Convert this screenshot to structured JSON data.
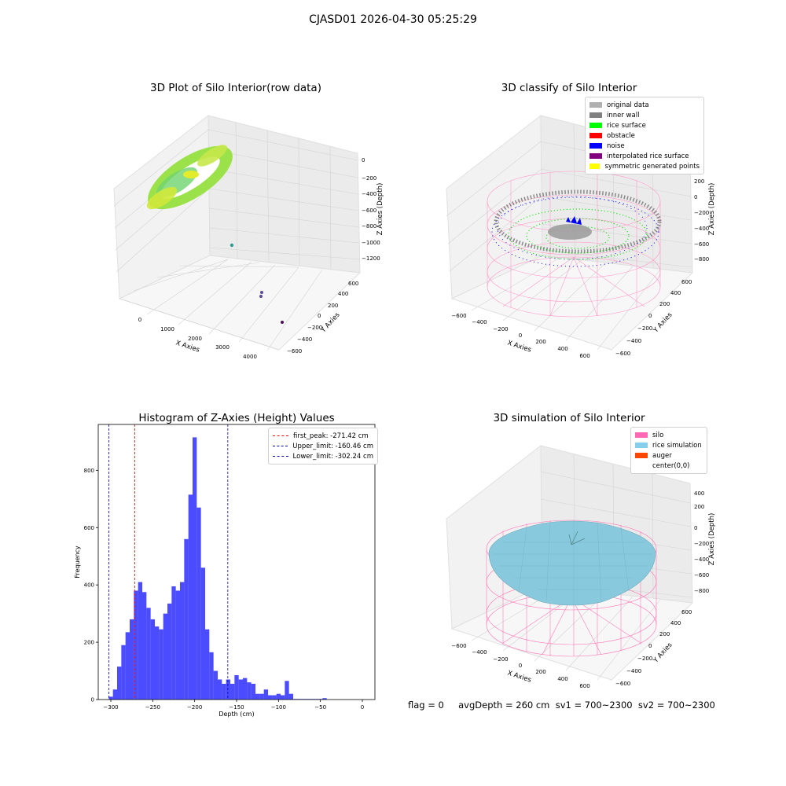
{
  "suptitle": "CJASD01 2026-04-30 05:25:29",
  "status_line": "flag = 0     avgDepth = 260 cm  sv1 = 700~2300  sv2 = 700~2300",
  "colors": {
    "histogram": "#0000ff",
    "first_peak": "#ff0000",
    "limit": "#0000aa",
    "silo": "#ff69b4",
    "rice_simulation": "#87ceeb",
    "auger": "#ff4500",
    "original": "#b0b0b0",
    "inner_wall": "#808080",
    "rice_surface": "#00ff00",
    "obstacle": "#ff0000",
    "noise": "#0000ff",
    "interpolated": "#800080",
    "symmetric": "#ffff00"
  },
  "chart_data": [
    {
      "type": "scatter",
      "title": "3D Plot of Silo Interior(row data)",
      "xlabel": "X Axies",
      "ylabel": "Y Axies",
      "zlabel": "Z Axies (Depth)",
      "x_ticks": [
        "0",
        "1000",
        "2000",
        "3000",
        "4000"
      ],
      "y_ticks": [
        "−600",
        "−400",
        "−200",
        "0",
        "200",
        "400",
        "600"
      ],
      "z_ticks": [
        "0",
        "−200",
        "−400",
        "−600",
        "−800",
        "−1000",
        "−1200"
      ],
      "grid": true
    },
    {
      "type": "scatter",
      "title": "3D classify of Silo Interior",
      "xlabel": "X Axies",
      "ylabel": "Y Axies",
      "zlabel": "Z Axies (Depth)",
      "x_ticks": [
        "−600",
        "−400",
        "−200",
        "0",
        "200",
        "400",
        "600"
      ],
      "y_ticks": [
        "−600",
        "−400",
        "−200",
        "0",
        "200",
        "400",
        "600"
      ],
      "z_ticks": [
        "200",
        "0",
        "−200",
        "−400",
        "−600",
        "−800"
      ],
      "legend": [
        "original data",
        "inner wall",
        "rice surface",
        "obstacle",
        "noise",
        "interpolated rice surface",
        "symmetric generated points"
      ],
      "legend_position": "top-right",
      "grid": true
    },
    {
      "type": "bar",
      "title": "Histogram of Z-Axies (Height) Values",
      "xlabel": "Depth (cm)",
      "ylabel": "Frequency",
      "xlim": [
        -315,
        15
      ],
      "ylim": [
        0,
        960
      ],
      "x_ticks": [
        -300,
        -250,
        -200,
        -150,
        -100,
        -50,
        0
      ],
      "y_ticks": [
        0,
        200,
        400,
        600,
        800
      ],
      "bin_start": -302.5,
      "bin_width": 5,
      "values": [
        10,
        35,
        115,
        190,
        235,
        280,
        380,
        410,
        375,
        320,
        280,
        255,
        245,
        300,
        335,
        395,
        380,
        410,
        560,
        715,
        915,
        670,
        460,
        245,
        165,
        100,
        70,
        55,
        70,
        55,
        85,
        70,
        75,
        60,
        55,
        20,
        20,
        35,
        15,
        15,
        20,
        15,
        65,
        20,
        2,
        2,
        2,
        2,
        2,
        2,
        2,
        5
      ],
      "vlines": [
        {
          "label": "first_peak: -271.42 cm",
          "x": -271.42,
          "color": "#ff0000"
        },
        {
          "label": "Upper_limit: -160.46 cm",
          "x": -160.46,
          "color": "#0000aa"
        },
        {
          "label": "Lower_limit: -302.24 cm",
          "x": -302.24,
          "color": "#0000aa"
        }
      ],
      "legend_position": "top-right"
    },
    {
      "type": "scatter",
      "title": "3D simulation of Silo Interior",
      "xlabel": "X Axies",
      "ylabel": "Y Axies",
      "zlabel": "Z Axies (Depth)",
      "x_ticks": [
        "−600",
        "−400",
        "−200",
        "0",
        "200",
        "400",
        "600"
      ],
      "y_ticks": [
        "−600",
        "−400",
        "−200",
        "0",
        "200",
        "400",
        "600"
      ],
      "z_ticks": [
        "400",
        "200",
        "0",
        "−200",
        "−400",
        "−600",
        "−800"
      ],
      "legend": [
        "silo",
        "rice simulation",
        "auger",
        "center(0,0)"
      ],
      "legend_position": "top-right",
      "grid": true
    }
  ]
}
